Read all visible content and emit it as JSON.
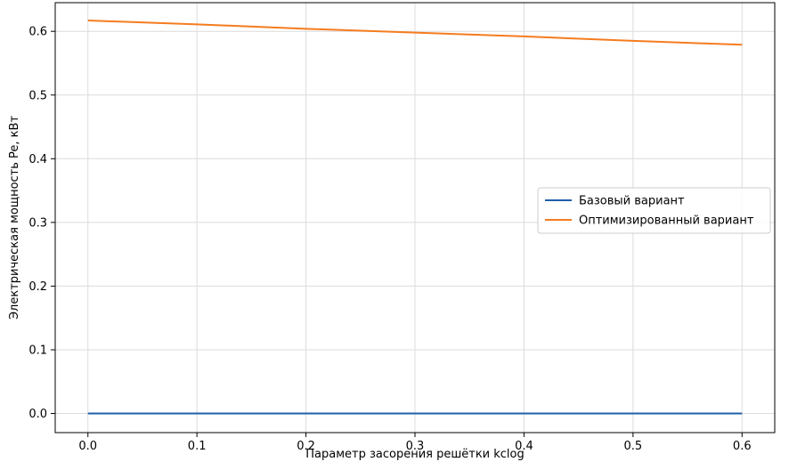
{
  "chart_data": {
    "type": "line",
    "title": "",
    "xlabel": "Параметр засорения решётки kclog",
    "ylabel": "Электрическая мощность Pe, кВт",
    "xlim": [
      -0.03,
      0.63
    ],
    "ylim": [
      -0.03,
      0.645
    ],
    "x_ticks": [
      0.0,
      0.1,
      0.2,
      0.3,
      0.4,
      0.5,
      0.6
    ],
    "x_tick_labels": [
      "0.0",
      "0.1",
      "0.2",
      "0.3",
      "0.4",
      "0.5",
      "0.6"
    ],
    "y_ticks": [
      0.0,
      0.1,
      0.2,
      0.3,
      0.4,
      0.5,
      0.6
    ],
    "y_tick_labels": [
      "0.0",
      "0.1",
      "0.2",
      "0.3",
      "0.4",
      "0.5",
      "0.6"
    ],
    "grid": true,
    "legend_position": "center-right",
    "x": [
      0.0,
      0.1,
      0.2,
      0.3,
      0.4,
      0.5,
      0.6
    ],
    "series": [
      {
        "name": "Базовый вариант",
        "color": "#1f5faa",
        "values": [
          0.0,
          0.0,
          0.0,
          0.0,
          0.0,
          0.0,
          0.0
        ]
      },
      {
        "name": "Оптимизированный вариант",
        "color": "#f57c1f",
        "values": [
          0.617,
          0.611,
          0.604,
          0.598,
          0.592,
          0.585,
          0.579
        ]
      }
    ]
  }
}
